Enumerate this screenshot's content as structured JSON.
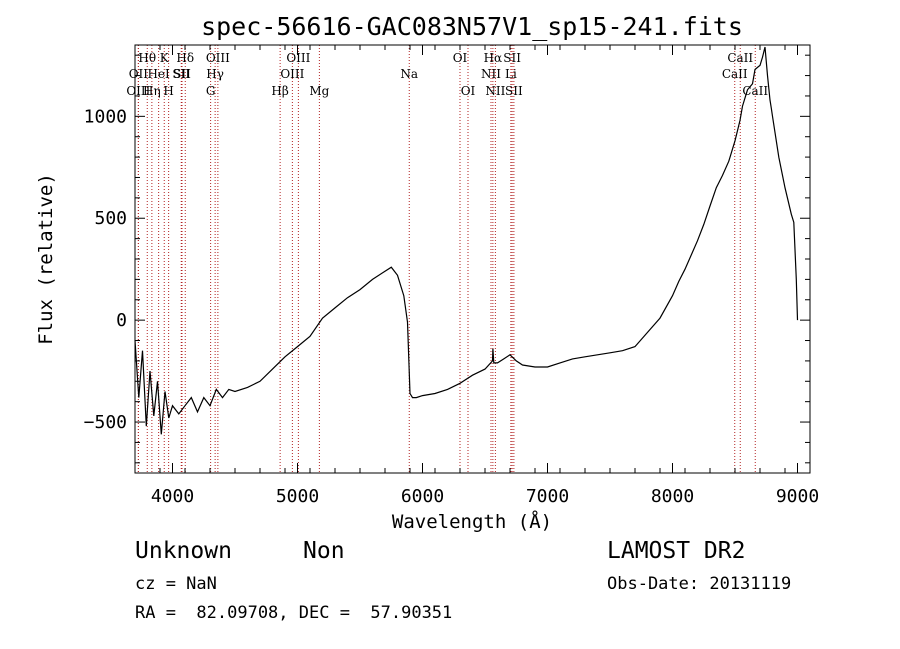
{
  "chart_data": {
    "type": "line",
    "title": "spec-56616-GAC083N57V1_sp15-241.fits",
    "xlabel": "Wavelength (Å)",
    "ylabel": "Flux (relative)",
    "xlim": [
      3700,
      9100
    ],
    "ylim": [
      -750,
      1350
    ],
    "xticks": [
      4000,
      5000,
      6000,
      7000,
      8000,
      9000
    ],
    "yticks": [
      -500,
      0,
      500,
      1000
    ],
    "grid": false,
    "series": [
      {
        "color": "#000000",
        "x": [
          3700,
          3730,
          3760,
          3790,
          3820,
          3850,
          3880,
          3910,
          3940,
          3970,
          4000,
          4050,
          4100,
          4150,
          4200,
          4250,
          4300,
          4350,
          4400,
          4450,
          4500,
          4600,
          4700,
          4800,
          4900,
          5000,
          5100,
          5200,
          5300,
          5400,
          5500,
          5600,
          5700,
          5750,
          5800,
          5850,
          5880,
          5900,
          5920,
          5950,
          6000,
          6100,
          6200,
          6300,
          6400,
          6500,
          6560,
          6563,
          6570,
          6600,
          6650,
          6700,
          6750,
          6800,
          6900,
          7000,
          7100,
          7200,
          7300,
          7400,
          7500,
          7600,
          7700,
          7800,
          7900,
          8000,
          8050,
          8100,
          8150,
          8200,
          8250,
          8300,
          8350,
          8400,
          8450,
          8500,
          8540,
          8560,
          8600,
          8640,
          8660,
          8680,
          8700,
          8720,
          8740,
          8760,
          8780,
          8790,
          8800,
          8850,
          8900,
          8950,
          8970,
          8990,
          9000
        ],
        "y": [
          -100,
          -380,
          -150,
          -520,
          -250,
          -470,
          -300,
          -560,
          -350,
          -480,
          -420,
          -460,
          -420,
          -380,
          -450,
          -380,
          -420,
          -340,
          -380,
          -340,
          -350,
          -330,
          -300,
          -240,
          -180,
          -130,
          -80,
          10,
          60,
          110,
          150,
          200,
          240,
          260,
          220,
          120,
          -10,
          -360,
          -380,
          -380,
          -370,
          -360,
          -340,
          -310,
          -270,
          -240,
          -200,
          -140,
          -210,
          -210,
          -190,
          -170,
          -200,
          -220,
          -230,
          -230,
          -210,
          -190,
          -180,
          -170,
          -160,
          -150,
          -130,
          -60,
          10,
          120,
          190,
          250,
          320,
          390,
          470,
          560,
          650,
          710,
          780,
          880,
          980,
          1050,
          1130,
          1160,
          1230,
          1240,
          1250,
          1290,
          1340,
          1200,
          1080,
          1040,
          1000,
          800,
          650,
          520,
          480,
          200,
          0
        ]
      }
    ],
    "spectral_lines": [
      {
        "label": "Hθ",
        "x": 3798,
        "row": 1
      },
      {
        "label": "OII",
        "x": 3727,
        "row": 2
      },
      {
        "label": "OIII",
        "x": 3727,
        "row": 3
      },
      {
        "label": "Hη",
        "x": 3835,
        "row": 3
      },
      {
        "label": "K",
        "x": 3934,
        "row": 1
      },
      {
        "label": "HeI",
        "x": 3889,
        "row": 2
      },
      {
        "label": "H",
        "x": 3969,
        "row": 3
      },
      {
        "label": "SII",
        "x": 4070,
        "row": 2
      },
      {
        "label": "Hδ",
        "x": 4102,
        "row": 1
      },
      {
        "label": "SII",
        "x": 4076,
        "row": 2
      },
      {
        "label": "OIII",
        "x": 4363,
        "row": 1
      },
      {
        "label": "Hγ",
        "x": 4341,
        "row": 2
      },
      {
        "label": "G",
        "x": 4305,
        "row": 3
      },
      {
        "label": "Hβ",
        "x": 4861,
        "row": 3
      },
      {
        "label": "OIII",
        "x": 5007,
        "row": 1
      },
      {
        "label": "OIII",
        "x": 4959,
        "row": 2
      },
      {
        "label": "Mg",
        "x": 5175,
        "row": 3
      },
      {
        "label": "Na",
        "x": 5894,
        "row": 2
      },
      {
        "label": "OI",
        "x": 6300,
        "row": 1
      },
      {
        "label": "OI",
        "x": 6364,
        "row": 3
      },
      {
        "label": "Hα",
        "x": 6563,
        "row": 1
      },
      {
        "label": "NII",
        "x": 6548,
        "row": 2
      },
      {
        "label": "NII",
        "x": 6583,
        "row": 3
      },
      {
        "label": "SII",
        "x": 6717,
        "row": 1
      },
      {
        "label": "Li",
        "x": 6707,
        "row": 2
      },
      {
        "label": "SII",
        "x": 6731,
        "row": 3
      },
      {
        "label": "CaII",
        "x": 8542,
        "row": 1
      },
      {
        "label": "CaII",
        "x": 8498,
        "row": 2
      },
      {
        "label": "CaII",
        "x": 8662,
        "row": 3
      }
    ]
  },
  "info": {
    "class": "Unknown",
    "subclass": "Non",
    "survey": "LAMOST DR2",
    "cz": "cz = NaN",
    "obs_date": "Obs-Date: 20131119",
    "coords": "RA =  82.09708, DEC =  57.90351"
  }
}
